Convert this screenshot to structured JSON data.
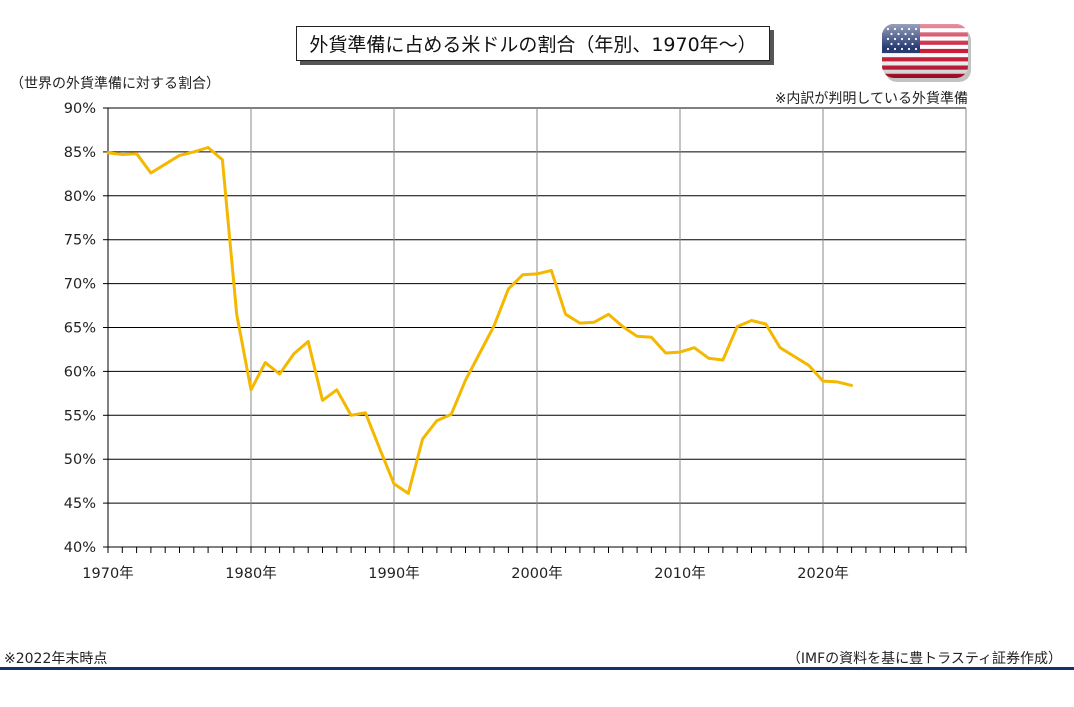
{
  "chart_data": {
    "type": "line",
    "title": "外貨準備に占める米ドルの割合（年別、1970年～）",
    "ylabel": "（世界の外貨準備に対する割合）",
    "note": "※内訳が判明している外貨準備",
    "footnote": "※2022年末時点",
    "source": "（IMFの資料を基に豊トラスティ証券作成）",
    "xlim": [
      1970,
      2030
    ],
    "ylim": [
      40,
      90
    ],
    "x_ticks": [
      1970,
      1980,
      1990,
      2000,
      2010,
      2020
    ],
    "x_tick_labels": [
      "1970年",
      "1980年",
      "1990年",
      "2000年",
      "2010年",
      "2020年"
    ],
    "y_ticks": [
      40,
      45,
      50,
      55,
      60,
      65,
      70,
      75,
      80,
      85,
      90
    ],
    "y_tick_labels": [
      "40%",
      "45%",
      "50%",
      "55%",
      "60%",
      "65%",
      "70%",
      "75%",
      "80%",
      "85%",
      "90%"
    ],
    "grid": true,
    "line_color": "#f5b800",
    "x": [
      1970,
      1971,
      1972,
      1973,
      1974,
      1975,
      1976,
      1977,
      1978,
      1979,
      1980,
      1981,
      1982,
      1983,
      1984,
      1985,
      1986,
      1987,
      1988,
      1989,
      1990,
      1991,
      1992,
      1993,
      1994,
      1995,
      1996,
      1997,
      1998,
      1999,
      2000,
      2001,
      2002,
      2003,
      2004,
      2005,
      2006,
      2007,
      2008,
      2009,
      2010,
      2011,
      2012,
      2013,
      2014,
      2015,
      2016,
      2017,
      2018,
      2019,
      2020,
      2021,
      2022
    ],
    "values": [
      84.9,
      84.7,
      84.8,
      82.6,
      83.6,
      84.6,
      85.0,
      85.5,
      84.1,
      66.5,
      57.9,
      61.0,
      59.7,
      62.0,
      63.4,
      56.7,
      57.9,
      55.0,
      55.3,
      51.2,
      47.2,
      46.1,
      52.3,
      54.4,
      55.1,
      59.0,
      62.1,
      65.2,
      69.4,
      71.0,
      71.1,
      71.5,
      66.5,
      65.5,
      65.6,
      66.5,
      65.1,
      64.0,
      63.9,
      62.1,
      62.2,
      62.7,
      61.5,
      61.3,
      65.1,
      65.8,
      65.4,
      62.7,
      61.7,
      60.7,
      58.9,
      58.8,
      58.4
    ]
  },
  "colors": {
    "accent": "#f5b800",
    "rule": "#16306a"
  },
  "icons": {
    "flag": "us-flag-icon"
  }
}
